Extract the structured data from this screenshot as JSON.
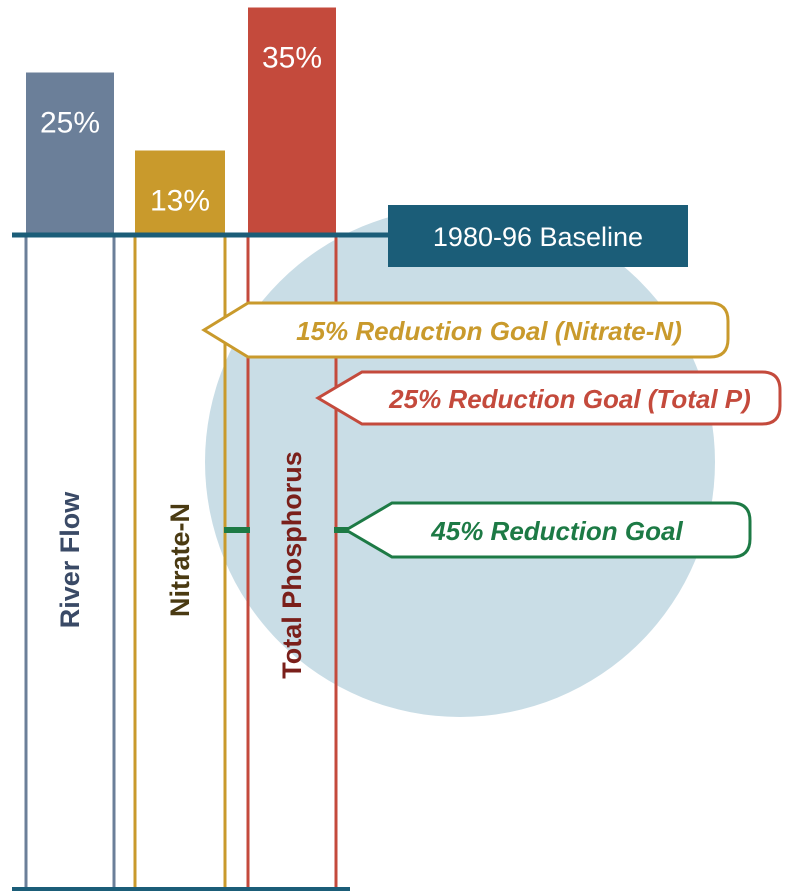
{
  "colors": {
    "river_flow": "#6b7f99",
    "nitrate": "#c99a2c",
    "phosphorus": "#c44a3c",
    "baseline": "#1b5d78",
    "nitrate_text": "#4a3a12",
    "phosphorus_text": "#7a1f1a",
    "river_text": "#3a4a66",
    "goal_green": "#1d7a45",
    "circle": "#c9dde6"
  },
  "baseline": {
    "label": "1980-96 Baseline"
  },
  "goals": [
    {
      "id": "nitrate",
      "label": "15% Reduction Goal (Nitrate-N)",
      "reduction_percent": 15,
      "color": "#c99a2c"
    },
    {
      "id": "phosphorus",
      "label": "25% Reduction Goal (Total P)",
      "reduction_percent": 25,
      "color": "#c44a3c"
    },
    {
      "id": "overall",
      "label": "45% Reduction Goal",
      "reduction_percent": 45,
      "color": "#1d7a45"
    }
  ],
  "chart_data": {
    "type": "bar",
    "categories": [
      "River Flow",
      "Nitrate-N",
      "Total Phosphorus"
    ],
    "series": [
      {
        "values": [
          25,
          13,
          35
        ]
      }
    ],
    "value_labels": [
      "25%",
      "13%",
      "35%"
    ],
    "title": "",
    "xlabel": "",
    "ylabel": "",
    "baseline_label": "1980-96 Baseline",
    "grid": false,
    "legend": "none"
  }
}
